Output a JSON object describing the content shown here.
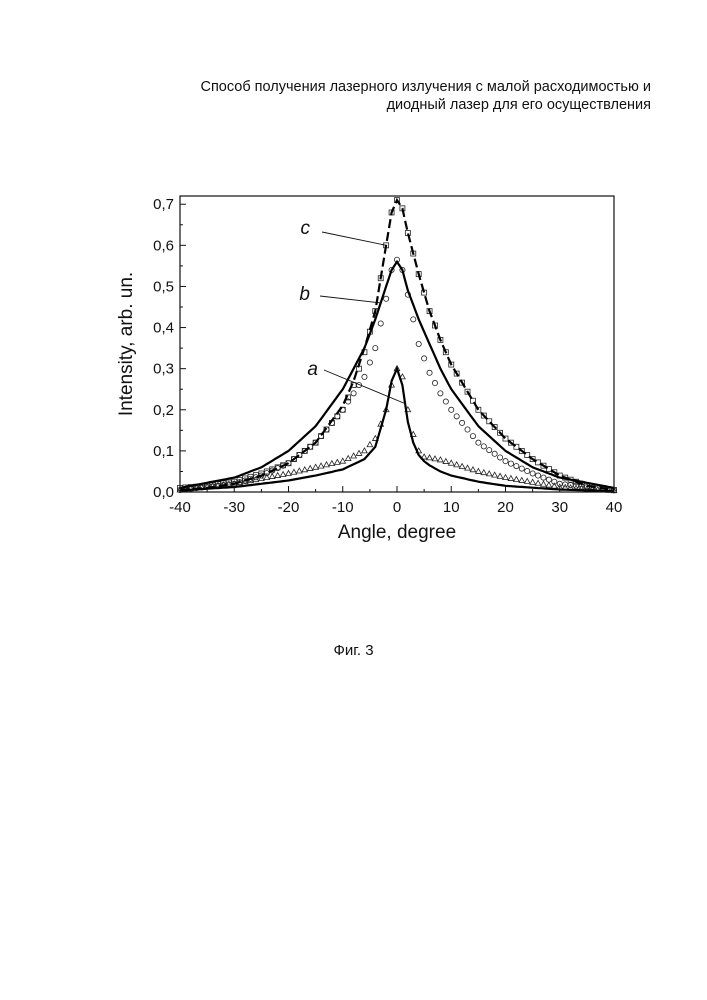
{
  "header": {
    "line1": "Способ получения лазерного излучения с малой расходимостью и",
    "line2": "диодный лазер для его осуществления"
  },
  "caption": "Фиг. 3",
  "chart_data": {
    "type": "line",
    "xlabel": "Angle, degree",
    "ylabel": "Intensity, arb. un.",
    "xlim": [
      -40,
      40
    ],
    "ylim": [
      0,
      0.72
    ],
    "x_ticks": [
      "-40",
      "-30",
      "-20",
      "-10",
      "0",
      "10",
      "20",
      "30",
      "40"
    ],
    "y_ticks": [
      "0,0",
      "0,1",
      "0,2",
      "0,3",
      "0,4",
      "0,5",
      "0,6",
      "0,7"
    ],
    "grid": false,
    "series": [
      {
        "name": "a",
        "x": [
          -40,
          -30,
          -20,
          -15,
          -10,
          -6,
          -4,
          -2,
          -1,
          0,
          1,
          2,
          3,
          4,
          5,
          6,
          8,
          10,
          15,
          20,
          30,
          40
        ],
        "measured": [
          0.005,
          0.02,
          0.045,
          0.06,
          0.075,
          0.1,
          0.13,
          0.2,
          0.26,
          0.3,
          0.28,
          0.2,
          0.14,
          0.1,
          0.085,
          0.083,
          0.078,
          0.07,
          0.05,
          0.035,
          0.012,
          0.003
        ],
        "fit": [
          0.004,
          0.012,
          0.028,
          0.04,
          0.055,
          0.08,
          0.11,
          0.2,
          0.27,
          0.3,
          0.26,
          0.17,
          0.12,
          0.09,
          0.075,
          0.065,
          0.05,
          0.04,
          0.025,
          0.015,
          0.006,
          0.002
        ]
      },
      {
        "name": "b",
        "x": [
          -40,
          -30,
          -25,
          -20,
          -15,
          -10,
          -6,
          -4,
          -2,
          -1,
          0,
          1,
          2,
          4,
          6,
          8,
          10,
          15,
          20,
          25,
          30,
          40
        ],
        "measured": [
          0.005,
          0.02,
          0.04,
          0.07,
          0.12,
          0.2,
          0.28,
          0.35,
          0.47,
          0.54,
          0.565,
          0.54,
          0.48,
          0.36,
          0.29,
          0.24,
          0.2,
          0.12,
          0.075,
          0.045,
          0.02,
          0.004
        ],
        "fit": [
          0.01,
          0.035,
          0.06,
          0.1,
          0.16,
          0.25,
          0.35,
          0.42,
          0.5,
          0.54,
          0.56,
          0.54,
          0.49,
          0.42,
          0.36,
          0.3,
          0.25,
          0.16,
          0.1,
          0.06,
          0.035,
          0.01
        ]
      },
      {
        "name": "c",
        "x": [
          -40,
          -35,
          -30,
          -25,
          -20,
          -15,
          -10,
          -8,
          -6,
          -4,
          -2,
          -1,
          0,
          1,
          2,
          4,
          6,
          8,
          10,
          15,
          20,
          25,
          30,
          35,
          40
        ],
        "measured": [
          0.01,
          0.015,
          0.025,
          0.045,
          0.07,
          0.12,
          0.2,
          0.26,
          0.34,
          0.44,
          0.6,
          0.68,
          0.71,
          0.69,
          0.63,
          0.53,
          0.44,
          0.37,
          0.31,
          0.2,
          0.13,
          0.08,
          0.04,
          0.015,
          0.005
        ],
        "fit": [
          0.005,
          0.01,
          0.02,
          0.04,
          0.07,
          0.12,
          0.21,
          0.27,
          0.35,
          0.44,
          0.6,
          0.68,
          0.71,
          0.69,
          0.63,
          0.53,
          0.44,
          0.37,
          0.31,
          0.2,
          0.13,
          0.08,
          0.04,
          0.015,
          0.005
        ]
      }
    ]
  }
}
